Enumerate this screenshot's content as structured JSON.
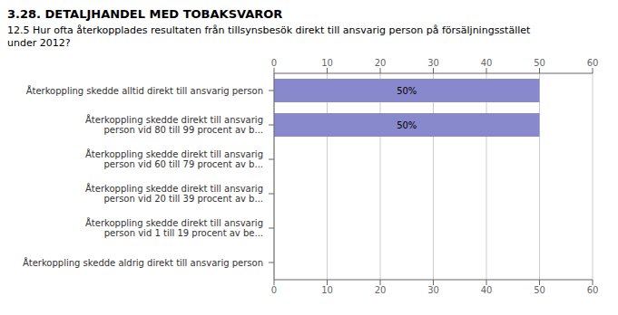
{
  "chart_data": {
    "type": "bar",
    "title": "3.28. DETALJHANDEL MED TOBAKSVAROR",
    "subtitle": "12.5 Hur ofta återkopplades resultaten från tillsynsbesök direkt till ansvarig person på försäljningsstället\nunder 2012?",
    "categories": [
      "Återkoppling skedde alltid direkt till ansvarig person",
      "Återkoppling skedde direkt till ansvarig\nperson vid 80 till 99 procent av b...",
      "Återkoppling skedde direkt till ansvarig\nperson vid 60 till 79 procent av b...",
      "Återkoppling skedde direkt till ansvarig\nperson vid 20 till 39 procent av b...",
      "Återkoppling skedde direkt till ansvarig\nperson vid 1 till 19 procent av be...",
      "Återkoppling skedde aldrig direkt till ansvarig person"
    ],
    "values": [
      50,
      50,
      0,
      0,
      0,
      0
    ],
    "value_labels": [
      "50%",
      "50%",
      null,
      null,
      null,
      null
    ],
    "data_labels": true,
    "color": "#8888cc",
    "orientation": "horizontal",
    "xlim": [
      0,
      60
    ],
    "xticks": [
      0,
      10,
      20,
      30,
      40,
      50,
      60
    ],
    "grid": true
  }
}
